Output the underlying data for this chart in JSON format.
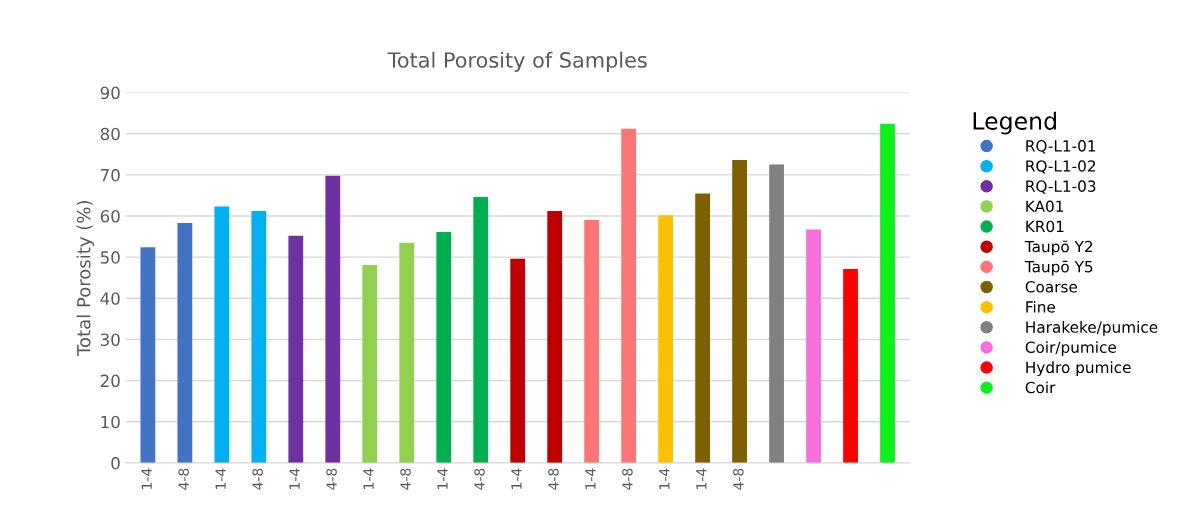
{
  "chart_data": {
    "type": "bar",
    "title": "Total Porosity of Samples",
    "ylabel": "Total Porosity (%)",
    "legend_title": "Legend",
    "categories": [
      "1-4",
      "4-8",
      "1-4",
      "4-8",
      "1-4",
      "4-8",
      "1-4",
      "4-8",
      "1-4",
      "4-8",
      "1-4",
      "4-8",
      "1-4",
      "4-8",
      "1-4",
      "1-4",
      "4-8",
      null,
      null,
      null,
      null
    ],
    "series": [
      {
        "name": "RQ-L1-01",
        "color": "#4472c4",
        "values": [
          52.4,
          58.3,
          null,
          null,
          null,
          null,
          null,
          null,
          null,
          null,
          null,
          null,
          null,
          null,
          null,
          null,
          null,
          null,
          null,
          null,
          null
        ]
      },
      {
        "name": "RQ-L1-02",
        "color": "#00b0f0",
        "values": [
          null,
          null,
          62.3,
          61.2,
          null,
          null,
          null,
          null,
          null,
          null,
          null,
          null,
          null,
          null,
          null,
          null,
          null,
          null,
          null,
          null,
          null
        ]
      },
      {
        "name": "RQ-L1-03",
        "color": "#7030a0",
        "values": [
          null,
          null,
          null,
          null,
          55.2,
          69.8,
          null,
          null,
          null,
          null,
          null,
          null,
          null,
          null,
          null,
          null,
          null,
          null,
          null,
          null,
          null
        ]
      },
      {
        "name": "KA01",
        "color": "#92d050",
        "values": [
          null,
          null,
          null,
          null,
          null,
          null,
          48.1,
          53.5,
          null,
          null,
          null,
          null,
          null,
          null,
          null,
          null,
          null,
          null,
          null,
          null,
          null
        ]
      },
      {
        "name": "KR01",
        "color": "#00b050",
        "values": [
          null,
          null,
          null,
          null,
          null,
          null,
          null,
          null,
          56.1,
          64.6,
          null,
          null,
          null,
          null,
          null,
          null,
          null,
          null,
          null,
          null,
          null
        ]
      },
      {
        "name": "Taupō Y2",
        "color": "#c00000",
        "values": [
          null,
          null,
          null,
          null,
          null,
          null,
          null,
          null,
          null,
          null,
          49.6,
          61.2,
          null,
          null,
          null,
          null,
          null,
          null,
          null,
          null,
          null
        ]
      },
      {
        "name": "Taupō Y5",
        "color": "#ff7575",
        "values": [
          null,
          null,
          null,
          null,
          null,
          null,
          null,
          null,
          null,
          null,
          null,
          null,
          59.0,
          81.2,
          null,
          null,
          null,
          null,
          null,
          null,
          null
        ]
      },
      {
        "name": "Coarse",
        "color": "#7f6000",
        "values": [
          null,
          null,
          null,
          null,
          null,
          null,
          null,
          null,
          null,
          null,
          null,
          null,
          null,
          null,
          null,
          65.5,
          73.6,
          null,
          null,
          null,
          null
        ]
      },
      {
        "name": "Fine",
        "color": "#ffc000",
        "values": [
          null,
          null,
          null,
          null,
          null,
          null,
          null,
          null,
          null,
          null,
          null,
          null,
          null,
          null,
          60.2,
          null,
          null,
          null,
          null,
          null,
          null
        ]
      },
      {
        "name": "Harakeke/pumice",
        "color": "#808080",
        "values": [
          null,
          null,
          null,
          null,
          null,
          null,
          null,
          null,
          null,
          null,
          null,
          null,
          null,
          null,
          null,
          null,
          null,
          72.5,
          null,
          null,
          null
        ]
      },
      {
        "name": "Coir/pumice",
        "color": "#f66fdc",
        "values": [
          null,
          null,
          null,
          null,
          null,
          null,
          null,
          null,
          null,
          null,
          null,
          null,
          null,
          null,
          null,
          null,
          null,
          null,
          56.7,
          null,
          null
        ]
      },
      {
        "name": "Hydro pumice",
        "color": "#ff0000",
        "values": [
          null,
          null,
          null,
          null,
          null,
          null,
          null,
          null,
          null,
          null,
          null,
          null,
          null,
          null,
          null,
          null,
          null,
          null,
          null,
          47.1,
          null
        ]
      },
      {
        "name": "Coir",
        "color": "#0df01e",
        "values": [
          null,
          null,
          null,
          null,
          null,
          null,
          null,
          null,
          null,
          null,
          null,
          null,
          null,
          null,
          null,
          null,
          null,
          null,
          null,
          null,
          82.4
        ]
      }
    ],
    "ylim": [
      0,
      90
    ],
    "yticks": [
      0,
      10,
      20,
      30,
      40,
      50,
      60,
      70,
      80,
      90
    ],
    "grid": "y",
    "legend": "right",
    "marker": "circle"
  }
}
